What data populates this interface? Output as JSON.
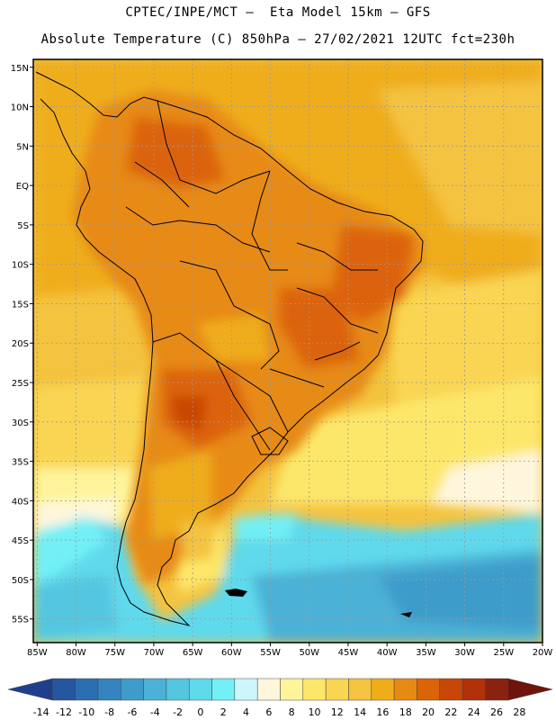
{
  "header": {
    "line1": "CPTEC/INPE/MCT –  Eta Model 15km – GFS",
    "line2": "Absolute Temperature (C) 850hPa – 27/02/2021 12UTC fct=230h"
  },
  "map": {
    "lat_labels": [
      "15N",
      "10N",
      "5N",
      "EQ",
      "5S",
      "10S",
      "15S",
      "20S",
      "25S",
      "30S",
      "35S",
      "40S",
      "45S",
      "50S",
      "55S"
    ],
    "lat_values": [
      15,
      10,
      5,
      0,
      -5,
      -10,
      -15,
      -20,
      -25,
      -30,
      -35,
      -40,
      -45,
      -50,
      -55
    ],
    "lon_labels": [
      "85W",
      "80W",
      "75W",
      "70W",
      "65W",
      "60W",
      "55W",
      "50W",
      "45W",
      "40W",
      "35W",
      "30W",
      "25W",
      "20W"
    ],
    "lon_values": [
      -85,
      -80,
      -75,
      -70,
      -65,
      -60,
      -55,
      -50,
      -45,
      -40,
      -35,
      -30,
      -25,
      -20
    ],
    "lon_range": [
      -85.5,
      -20
    ],
    "lat_range": [
      -58,
      16
    ],
    "grid": true
  },
  "colorbar": {
    "labels": [
      "-14",
      "-12",
      "-10",
      "-8",
      "-6",
      "-4",
      "-2",
      "0",
      "2",
      "4",
      "6",
      "8",
      "10",
      "12",
      "14",
      "16",
      "18",
      "20",
      "22",
      "24",
      "26",
      "28"
    ],
    "colors": [
      "#1f3f8c",
      "#2457a0",
      "#2c6eb2",
      "#3384c0",
      "#3e9cca",
      "#4cb1d6",
      "#54c6e0",
      "#5fd9ec",
      "#72f0f6",
      "#cdf6fb",
      "#fff6dd",
      "#fff49c",
      "#fde76b",
      "#f9d553",
      "#f4c33f",
      "#efad1a",
      "#e78a14",
      "#dc6408",
      "#c94706",
      "#b0310a",
      "#8a2210",
      "#6e140c"
    ]
  }
}
